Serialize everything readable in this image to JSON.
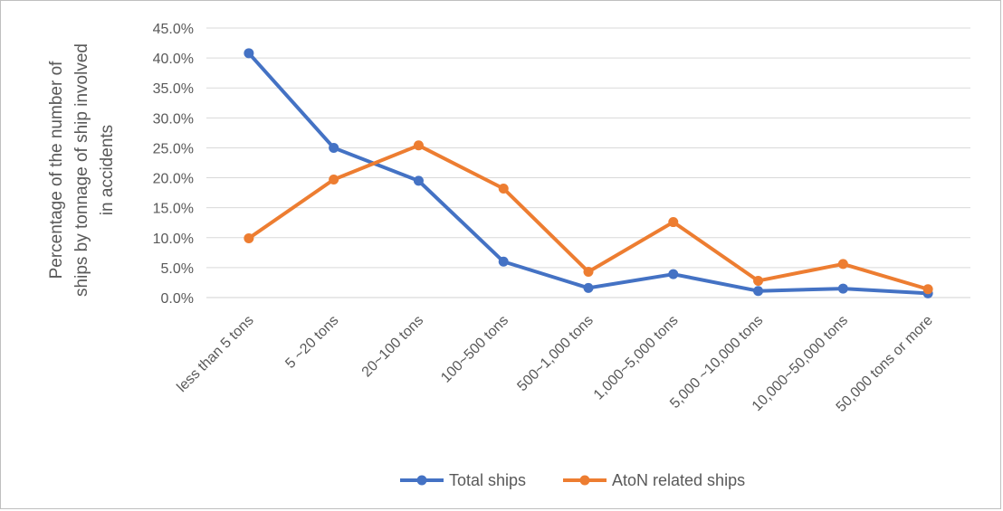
{
  "chart_data": {
    "type": "line",
    "ylabel_lines": [
      "Percentage of the number of",
      "ships by tonnage of ship involved",
      "in accidents"
    ],
    "categories": [
      "less than 5 tons",
      "5 ~20 tons",
      "20~100 tons",
      "100~500 tons",
      "500~1,000 tons",
      "1,000~5,000 tons",
      "5,000 ~10,000 tons",
      "10,000~50,000 tons",
      "50,000 tons or more"
    ],
    "ylim": [
      0,
      45
    ],
    "yticks": [
      "0.0%",
      "5.0%",
      "10.0%",
      "15.0%",
      "20.0%",
      "25.0%",
      "30.0%",
      "35.0%",
      "40.0%",
      "45.0%"
    ],
    "grid": true,
    "legend_position": "bottom",
    "series": [
      {
        "name": "Total ships",
        "color": "#4472c4",
        "values": [
          40.8,
          25.0,
          19.5,
          6.0,
          1.6,
          3.9,
          1.1,
          1.5,
          0.7
        ]
      },
      {
        "name": "AtoN related ships",
        "color": "#ed7d31",
        "values": [
          9.9,
          19.7,
          25.4,
          18.2,
          4.3,
          12.6,
          2.8,
          5.6,
          1.4
        ]
      }
    ]
  }
}
